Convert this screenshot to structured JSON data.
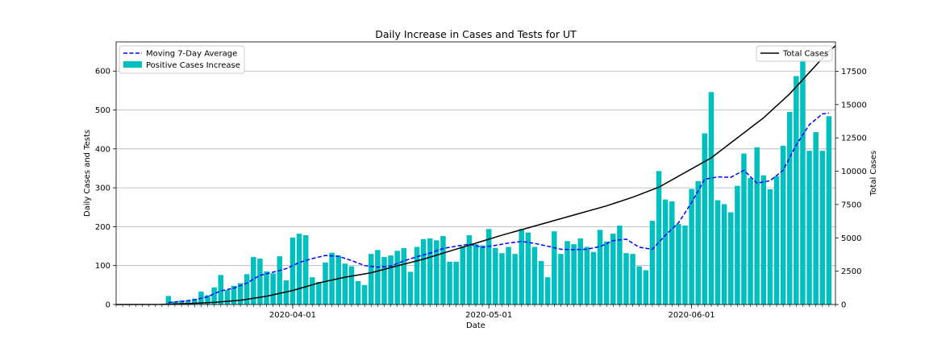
{
  "chart_data": {
    "type": "bar",
    "title": "Daily Increase in Cases and Tests for UT",
    "xlabel": "Date",
    "ylabel": "Daily Cases and Tests",
    "y2label": "Total Cases",
    "x_start": "2020-03-05",
    "x_end": "2020-06-23",
    "x_ticks": [
      "2020-04-01",
      "2020-05-01",
      "2020-06-01"
    ],
    "ylim": [
      0,
      675
    ],
    "y_ticks": [
      0,
      100,
      200,
      300,
      400,
      500,
      600
    ],
    "y2lim": [
      0,
      19700
    ],
    "y2_ticks": [
      0,
      2500,
      5000,
      7500,
      10000,
      12500,
      15000,
      17500
    ],
    "grid": "y",
    "colors": {
      "bars": "#00bfbf",
      "average": "#0000ff",
      "total": "#000000"
    },
    "legend_left": [
      {
        "label": "Moving 7-Day Average",
        "style": "dashed-line",
        "color": "#0000ff"
      },
      {
        "label": "Positive Cases Increase",
        "style": "patch",
        "color": "#00bfbf"
      }
    ],
    "legend_right": [
      {
        "label": "Total Cases",
        "style": "line",
        "color": "#000000"
      }
    ],
    "series": [
      {
        "name": "Positive Cases Increase",
        "kind": "bar",
        "axis": "left",
        "points": [
          [
            "2020-03-13",
            22
          ],
          [
            "2020-03-14",
            8
          ],
          [
            "2020-03-15",
            10
          ],
          [
            "2020-03-16",
            11
          ],
          [
            "2020-03-17",
            15
          ],
          [
            "2020-03-18",
            33
          ],
          [
            "2020-03-19",
            24
          ],
          [
            "2020-03-20",
            44
          ],
          [
            "2020-03-21",
            76
          ],
          [
            "2020-03-22",
            37
          ],
          [
            "2020-03-23",
            48
          ],
          [
            "2020-03-24",
            55
          ],
          [
            "2020-03-25",
            78
          ],
          [
            "2020-03-26",
            122
          ],
          [
            "2020-03-27",
            118
          ],
          [
            "2020-03-28",
            85
          ],
          [
            "2020-03-29",
            80
          ],
          [
            "2020-03-30",
            124
          ],
          [
            "2020-03-31",
            62
          ],
          [
            "2020-04-01",
            172
          ],
          [
            "2020-04-02",
            182
          ],
          [
            "2020-04-03",
            178
          ],
          [
            "2020-04-04",
            70
          ],
          [
            "2020-04-05",
            58
          ],
          [
            "2020-04-06",
            108
          ],
          [
            "2020-04-07",
            133
          ],
          [
            "2020-04-08",
            126
          ],
          [
            "2020-04-09",
            105
          ],
          [
            "2020-04-10",
            98
          ],
          [
            "2020-04-11",
            60
          ],
          [
            "2020-04-12",
            50
          ],
          [
            "2020-04-13",
            130
          ],
          [
            "2020-04-14",
            140
          ],
          [
            "2020-04-15",
            122
          ],
          [
            "2020-04-16",
            126
          ],
          [
            "2020-04-17",
            138
          ],
          [
            "2020-04-18",
            145
          ],
          [
            "2020-04-19",
            84
          ],
          [
            "2020-04-20",
            148
          ],
          [
            "2020-04-21",
            168
          ],
          [
            "2020-04-22",
            170
          ],
          [
            "2020-04-23",
            165
          ],
          [
            "2020-04-24",
            176
          ],
          [
            "2020-04-25",
            110
          ],
          [
            "2020-04-26",
            110
          ],
          [
            "2020-04-27",
            150
          ],
          [
            "2020-04-28",
            178
          ],
          [
            "2020-04-29",
            155
          ],
          [
            "2020-04-30",
            152
          ],
          [
            "2020-05-01",
            194
          ],
          [
            "2020-05-02",
            145
          ],
          [
            "2020-05-03",
            132
          ],
          [
            "2020-05-04",
            148
          ],
          [
            "2020-05-05",
            130
          ],
          [
            "2020-05-06",
            194
          ],
          [
            "2020-05-07",
            185
          ],
          [
            "2020-05-08",
            148
          ],
          [
            "2020-05-09",
            112
          ],
          [
            "2020-05-10",
            70
          ],
          [
            "2020-05-11",
            188
          ],
          [
            "2020-05-12",
            130
          ],
          [
            "2020-05-13",
            163
          ],
          [
            "2020-05-14",
            155
          ],
          [
            "2020-05-15",
            170
          ],
          [
            "2020-05-16",
            148
          ],
          [
            "2020-05-17",
            135
          ],
          [
            "2020-05-18",
            192
          ],
          [
            "2020-05-19",
            162
          ],
          [
            "2020-05-20",
            182
          ],
          [
            "2020-05-21",
            203
          ],
          [
            "2020-05-22",
            132
          ],
          [
            "2020-05-23",
            130
          ],
          [
            "2020-05-24",
            98
          ],
          [
            "2020-05-25",
            88
          ],
          [
            "2020-05-26",
            215
          ],
          [
            "2020-05-27",
            343
          ],
          [
            "2020-05-28",
            270
          ],
          [
            "2020-05-29",
            265
          ],
          [
            "2020-05-30",
            207
          ],
          [
            "2020-05-31",
            203
          ],
          [
            "2020-06-01",
            297
          ],
          [
            "2020-06-02",
            317
          ],
          [
            "2020-06-03",
            440
          ],
          [
            "2020-06-04",
            546
          ],
          [
            "2020-06-05",
            268
          ],
          [
            "2020-06-06",
            258
          ],
          [
            "2020-06-07",
            237
          ],
          [
            "2020-06-08",
            305
          ],
          [
            "2020-06-09",
            388
          ],
          [
            "2020-06-10",
            325
          ],
          [
            "2020-06-11",
            404
          ],
          [
            "2020-06-12",
            332
          ],
          [
            "2020-06-13",
            296
          ],
          [
            "2020-06-14",
            330
          ],
          [
            "2020-06-15",
            408
          ],
          [
            "2020-06-16",
            495
          ],
          [
            "2020-06-17",
            587
          ],
          [
            "2020-06-18",
            630
          ],
          [
            "2020-06-19",
            395
          ],
          [
            "2020-06-20",
            443
          ],
          [
            "2020-06-21",
            395
          ],
          [
            "2020-06-22",
            484
          ]
        ]
      },
      {
        "name": "Moving 7-Day Average",
        "kind": "line",
        "style": "dashed",
        "axis": "left",
        "points": [
          [
            "2020-03-13",
            5
          ],
          [
            "2020-03-15",
            8
          ],
          [
            "2020-03-17",
            12
          ],
          [
            "2020-03-19",
            20
          ],
          [
            "2020-03-21",
            35
          ],
          [
            "2020-03-23",
            42
          ],
          [
            "2020-03-25",
            55
          ],
          [
            "2020-03-27",
            75
          ],
          [
            "2020-03-29",
            83
          ],
          [
            "2020-03-31",
            92
          ],
          [
            "2020-04-02",
            108
          ],
          [
            "2020-04-04",
            118
          ],
          [
            "2020-04-06",
            126
          ],
          [
            "2020-04-08",
            124
          ],
          [
            "2020-04-10",
            113
          ],
          [
            "2020-04-12",
            100
          ],
          [
            "2020-04-14",
            96
          ],
          [
            "2020-04-16",
            99
          ],
          [
            "2020-04-18",
            112
          ],
          [
            "2020-04-20",
            123
          ],
          [
            "2020-04-22",
            132
          ],
          [
            "2020-04-24",
            144
          ],
          [
            "2020-04-26",
            150
          ],
          [
            "2020-04-28",
            155
          ],
          [
            "2020-04-30",
            147
          ],
          [
            "2020-05-02",
            152
          ],
          [
            "2020-05-04",
            158
          ],
          [
            "2020-05-06",
            162
          ],
          [
            "2020-05-08",
            157
          ],
          [
            "2020-05-10",
            150
          ],
          [
            "2020-05-12",
            142
          ],
          [
            "2020-05-14",
            141
          ],
          [
            "2020-05-16",
            142
          ],
          [
            "2020-05-18",
            149
          ],
          [
            "2020-05-20",
            164
          ],
          [
            "2020-05-22",
            168
          ],
          [
            "2020-05-24",
            147
          ],
          [
            "2020-05-26",
            142
          ],
          [
            "2020-05-28",
            178
          ],
          [
            "2020-05-30",
            210
          ],
          [
            "2020-06-01",
            262
          ],
          [
            "2020-06-03",
            322
          ],
          [
            "2020-06-05",
            328
          ],
          [
            "2020-06-07",
            327
          ],
          [
            "2020-06-09",
            345
          ],
          [
            "2020-06-11",
            312
          ],
          [
            "2020-06-13",
            318
          ],
          [
            "2020-06-15",
            345
          ],
          [
            "2020-06-17",
            410
          ],
          [
            "2020-06-19",
            462
          ],
          [
            "2020-06-21",
            490
          ],
          [
            "2020-06-22",
            492
          ]
        ]
      },
      {
        "name": "Total Cases",
        "kind": "line",
        "style": "solid",
        "axis": "right",
        "points": [
          [
            "2020-03-05",
            0
          ],
          [
            "2020-03-12",
            10
          ],
          [
            "2020-03-16",
            70
          ],
          [
            "2020-03-20",
            160
          ],
          [
            "2020-03-24",
            320
          ],
          [
            "2020-03-28",
            620
          ],
          [
            "2020-04-01",
            1050
          ],
          [
            "2020-04-05",
            1620
          ],
          [
            "2020-04-09",
            2050
          ],
          [
            "2020-04-13",
            2380
          ],
          [
            "2020-04-17",
            2900
          ],
          [
            "2020-04-21",
            3400
          ],
          [
            "2020-04-25",
            4000
          ],
          [
            "2020-04-29",
            4600
          ],
          [
            "2020-05-03",
            5200
          ],
          [
            "2020-05-07",
            5750
          ],
          [
            "2020-05-11",
            6300
          ],
          [
            "2020-05-15",
            6850
          ],
          [
            "2020-05-19",
            7400
          ],
          [
            "2020-05-23",
            8050
          ],
          [
            "2020-05-27",
            8800
          ],
          [
            "2020-05-31",
            9900
          ],
          [
            "2020-06-04",
            11000
          ],
          [
            "2020-06-08",
            12500
          ],
          [
            "2020-06-12",
            14000
          ],
          [
            "2020-06-16",
            15800
          ],
          [
            "2020-06-19",
            17400
          ],
          [
            "2020-06-22",
            19000
          ],
          [
            "2020-06-23",
            19400
          ]
        ]
      }
    ]
  }
}
